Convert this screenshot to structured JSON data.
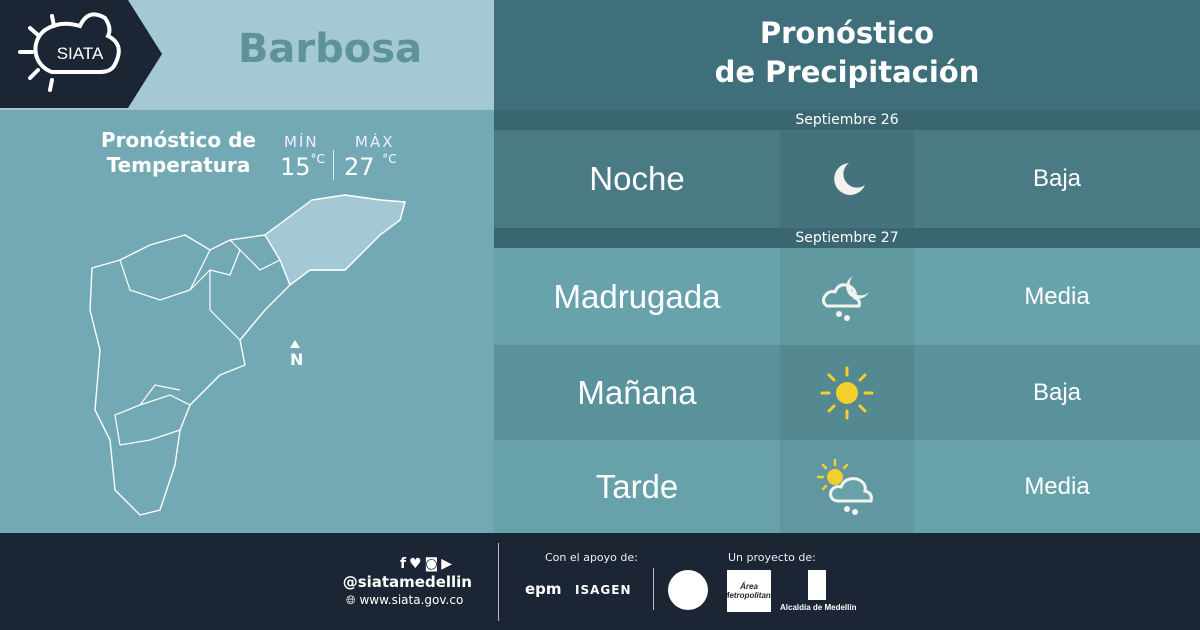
{
  "header": {
    "logo_text": "SIATA",
    "city": "Barbosa",
    "title_line1": "Pronóstico",
    "title_line2": "de Precipitación"
  },
  "temperature": {
    "title_line1": "Pronóstico de",
    "title_line2": "Temperatura",
    "min_label": "MÍN",
    "min_value": "15",
    "max_label": "MÁX",
    "max_value": "27",
    "unit": "°C"
  },
  "map": {
    "north_label": "N"
  },
  "forecast": {
    "dates": [
      "Septiembre 26",
      "Septiembre 27"
    ],
    "rows": [
      {
        "period": "Noche",
        "icon": "moon-icon",
        "level": "Baja",
        "color": "#4a7a84"
      },
      {
        "period": "Madrugada",
        "icon": "cloud-rain-moon-icon",
        "level": "Media",
        "color": "#68a3ac"
      },
      {
        "period": "Mañana",
        "icon": "sun-icon",
        "level": "Baja",
        "color": "#5a929c"
      },
      {
        "period": "Tarde",
        "icon": "sun-cloud-rain-icon",
        "level": "Media",
        "color": "#67a1aa"
      }
    ]
  },
  "footer": {
    "social_icons": [
      "facebook-icon",
      "twitter-icon",
      "instagram-icon",
      "youtube-icon"
    ],
    "handle": "@siatamedellin",
    "website": "www.siata.gov.co",
    "support_label": "Con el apoyo de:",
    "sponsors": [
      "epm",
      "ISAGEN"
    ],
    "project_label": "Un proyecto de:",
    "partners": [
      "Área Metropolitana",
      "Alcaldía de Medellín"
    ]
  }
}
